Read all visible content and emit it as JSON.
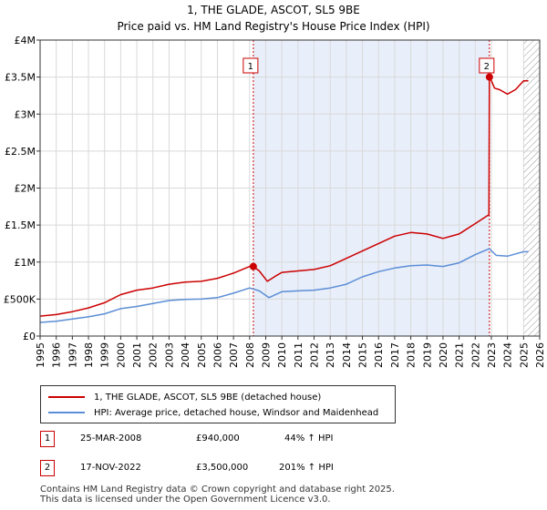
{
  "title": "1, THE GLADE, ASCOT, SL5 9BE",
  "subtitle": "Price paid vs. HM Land Registry's House Price Index (HPI)",
  "colors": {
    "property": "#cc0000",
    "hpi": "#5b8ed6",
    "shade": "#e8eefa",
    "grid": "#d9d9d9"
  },
  "chart_data": {
    "type": "line",
    "title": "1, THE GLADE, ASCOT, SL5 9BE",
    "subtitle": "Price paid vs. HM Land Registry's House Price Index (HPI)",
    "xlim": [
      1995,
      2026
    ],
    "ylim": [
      0,
      4000000
    ],
    "x_ticks": [
      "1995",
      "1996",
      "1997",
      "1998",
      "1999",
      "2000",
      "2001",
      "2002",
      "2003",
      "2004",
      "2005",
      "2006",
      "2007",
      "2008",
      "2009",
      "2010",
      "2011",
      "2012",
      "2013",
      "2014",
      "2015",
      "2016",
      "2017",
      "2018",
      "2019",
      "2020",
      "2021",
      "2022",
      "2023",
      "2024",
      "2025",
      "2026"
    ],
    "y_ticks": [
      {
        "value": 0,
        "label": "£0"
      },
      {
        "value": 500000,
        "label": "£500K"
      },
      {
        "value": 1000000,
        "label": "£1M"
      },
      {
        "value": 1500000,
        "label": "£1.5M"
      },
      {
        "value": 2000000,
        "label": "£2M"
      },
      {
        "value": 2500000,
        "label": "£2.5M"
      },
      {
        "value": 3000000,
        "label": "£3M"
      },
      {
        "value": 3500000,
        "label": "£3.5M"
      },
      {
        "value": 4000000,
        "label": "£4M"
      }
    ],
    "shaded_range": [
      2008.23,
      2022.88
    ],
    "future_hatch_from": 2025.0,
    "series": [
      {
        "name": "1, THE GLADE, ASCOT, SL5 9BE (detached house)",
        "key": "property",
        "x": [
          1995,
          1996,
          1997,
          1998,
          1999,
          2000,
          2001,
          2002,
          2003,
          2004,
          2005,
          2006,
          2007,
          2008.0,
          2008.23,
          2008.6,
          2009.1,
          2009.6,
          2010,
          2011,
          2012,
          2013,
          2014,
          2015,
          2016,
          2017,
          2018,
          2019,
          2020,
          2021,
          2022,
          2022.85,
          2022.88,
          2023.0,
          2023.2,
          2023.5,
          2024,
          2024.5,
          2025.0,
          2025.3
        ],
        "y": [
          270000,
          290000,
          330000,
          380000,
          450000,
          560000,
          620000,
          650000,
          700000,
          730000,
          740000,
          780000,
          850000,
          940000,
          940000,
          880000,
          740000,
          810000,
          860000,
          880000,
          900000,
          950000,
          1050000,
          1150000,
          1250000,
          1350000,
          1400000,
          1380000,
          1320000,
          1380000,
          1520000,
          1640000,
          3500000,
          3450000,
          3350000,
          3330000,
          3270000,
          3330000,
          3450000,
          3450000
        ]
      },
      {
        "name": "HPI: Average price, detached house, Windsor and Maidenhead",
        "key": "hpi",
        "x": [
          1995,
          1996,
          1997,
          1998,
          1999,
          2000,
          2001,
          2002,
          2003,
          2004,
          2005,
          2006,
          2007,
          2008,
          2008.6,
          2009.2,
          2010,
          2011,
          2012,
          2013,
          2014,
          2015,
          2016,
          2017,
          2018,
          2019,
          2020,
          2021,
          2022,
          2022.88,
          2023.3,
          2024,
          2024.5,
          2025.0,
          2025.3
        ],
        "y": [
          185000,
          200000,
          230000,
          260000,
          300000,
          370000,
          400000,
          440000,
          480000,
          495000,
          500000,
          520000,
          580000,
          650000,
          610000,
          520000,
          600000,
          610000,
          620000,
          650000,
          700000,
          800000,
          870000,
          920000,
          950000,
          960000,
          940000,
          990000,
          1100000,
          1180000,
          1090000,
          1080000,
          1110000,
          1140000,
          1140000
        ]
      }
    ],
    "annotations": [
      {
        "label": "1",
        "x": 2008.23,
        "y": 940000
      },
      {
        "label": "2",
        "x": 2022.88,
        "y": 3500000
      }
    ]
  },
  "legend": {
    "property_label": "1, THE GLADE, ASCOT, SL5 9BE (detached house)",
    "hpi_label": "HPI: Average price, detached house, Windsor and Maidenhead"
  },
  "transactions": [
    {
      "num": "1",
      "date": "25-MAR-2008",
      "price": "£940,000",
      "hpi": "44% ↑ HPI"
    },
    {
      "num": "2",
      "date": "17-NOV-2022",
      "price": "£3,500,000",
      "hpi": "201% ↑ HPI"
    }
  ],
  "footer": {
    "line1": "Contains HM Land Registry data © Crown copyright and database right 2025.",
    "line2": "This data is licensed under the Open Government Licence v3.0."
  }
}
